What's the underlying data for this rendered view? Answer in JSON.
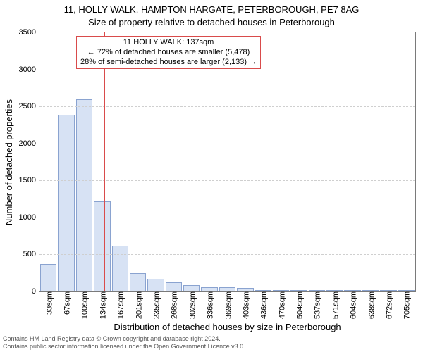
{
  "title_line1": "11, HOLLY WALK, HAMPTON HARGATE, PETERBOROUGH, PE7 8AG",
  "title_line2": "Size of property relative to detached houses in Peterborough",
  "ylabel": "Number of detached properties",
  "xlabel": "Distribution of detached houses by size in Peterborough",
  "footer_line1": "Contains HM Land Registry data © Crown copyright and database right 2024.",
  "footer_line2": "Contains public sector information licensed under the Open Government Licence v3.0.",
  "chart": {
    "type": "histogram",
    "ylim": [
      0,
      3500
    ],
    "ytick_step": 500,
    "categories": [
      "33sqm",
      "67sqm",
      "100sqm",
      "134sqm",
      "167sqm",
      "201sqm",
      "235sqm",
      "268sqm",
      "302sqm",
      "336sqm",
      "369sqm",
      "403sqm",
      "436sqm",
      "470sqm",
      "504sqm",
      "537sqm",
      "571sqm",
      "604sqm",
      "638sqm",
      "672sqm",
      "705sqm"
    ],
    "values": [
      370,
      2390,
      2600,
      1220,
      620,
      250,
      170,
      120,
      90,
      60,
      55,
      45,
      10,
      8,
      6,
      5,
      5,
      4,
      4,
      3,
      3
    ],
    "bar_fill": "#d7e2f4",
    "bar_border": "#8aa3d0",
    "background_color": "#ffffff",
    "grid_color": "#cfcfcf",
    "axis_color": "#7a7a7a",
    "label_fontsize": 11,
    "axis_label_fontsize": 13,
    "title_fontsize": 13,
    "reference_line": {
      "value_sqm": 137,
      "color": "#d94b4b"
    },
    "callout": {
      "border_color": "#d94b4b",
      "lines": [
        "11 HOLLY WALK: 137sqm",
        "← 72% of detached houses are smaller (5,478)",
        "28% of semi-detached houses are larger (2,133) →"
      ]
    }
  }
}
